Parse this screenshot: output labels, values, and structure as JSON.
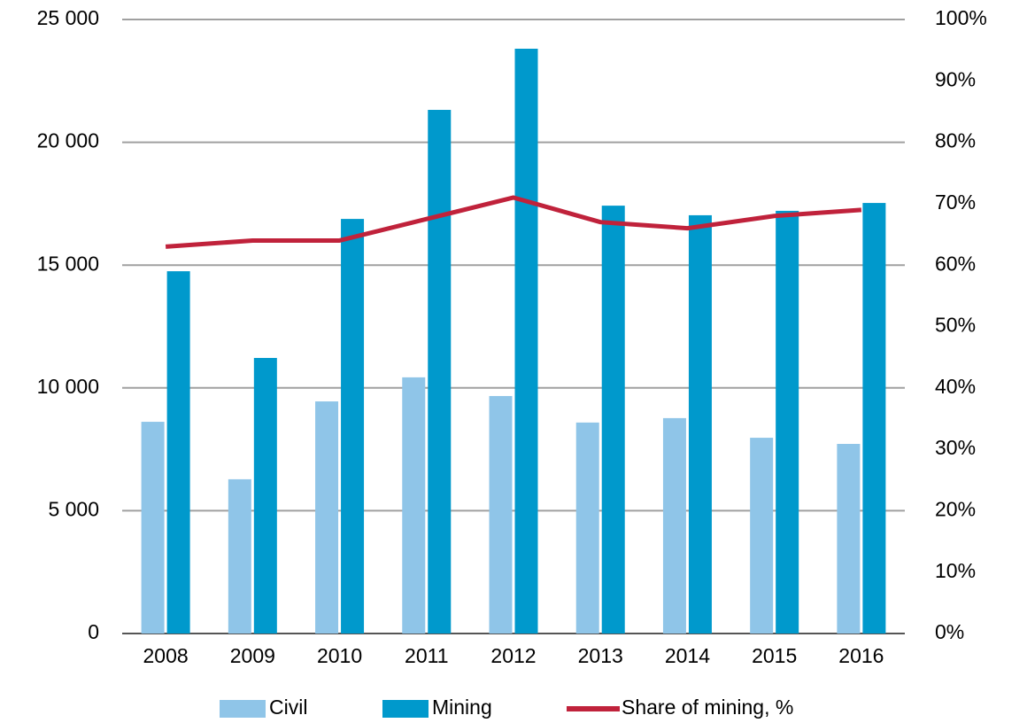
{
  "chart_data": {
    "type": "bar",
    "categories": [
      "2008",
      "2009",
      "2010",
      "2011",
      "2012",
      "2013",
      "2014",
      "2015",
      "2016"
    ],
    "series": [
      {
        "name": "Civil",
        "color": "#8fc5e8",
        "values": [
          8620,
          6280,
          9450,
          10430,
          9670,
          8590,
          8770,
          7970,
          7720
        ]
      },
      {
        "name": "Mining",
        "color": "#0099cc",
        "values": [
          14750,
          11220,
          16880,
          21320,
          23810,
          17420,
          17030,
          17210,
          17530
        ]
      },
      {
        "name": "Share of mining, %",
        "color": "#c0223b",
        "type": "line",
        "axis": "y2",
        "values": [
          63,
          64,
          64,
          67.5,
          71,
          67,
          66,
          68,
          69
        ]
      }
    ],
    "ylim": [
      0,
      25000
    ],
    "yticks": [
      0,
      {
        "value": 5000,
        "label": "5 000"
      },
      {
        "value": 10000,
        "label": "10 000"
      },
      {
        "value": 15000,
        "label": "15 000"
      },
      {
        "value": 20000,
        "label": "20 000"
      },
      {
        "value": 25000,
        "label": "25 000"
      }
    ],
    "y2lim": [
      0,
      100
    ],
    "y2ticks": [
      {
        "value": 0,
        "label": "0%"
      },
      {
        "value": 10,
        "label": "10%"
      },
      {
        "value": 20,
        "label": "20%"
      },
      {
        "value": 30,
        "label": "30%"
      },
      {
        "value": 40,
        "label": "40%"
      },
      {
        "value": 50,
        "label": "50%"
      },
      {
        "value": 60,
        "label": "60%"
      },
      {
        "value": 70,
        "label": "70%"
      },
      {
        "value": 80,
        "label": "80%"
      },
      {
        "value": 90,
        "label": "90%"
      },
      {
        "value": 100,
        "label": "100%"
      }
    ],
    "grid": true
  }
}
